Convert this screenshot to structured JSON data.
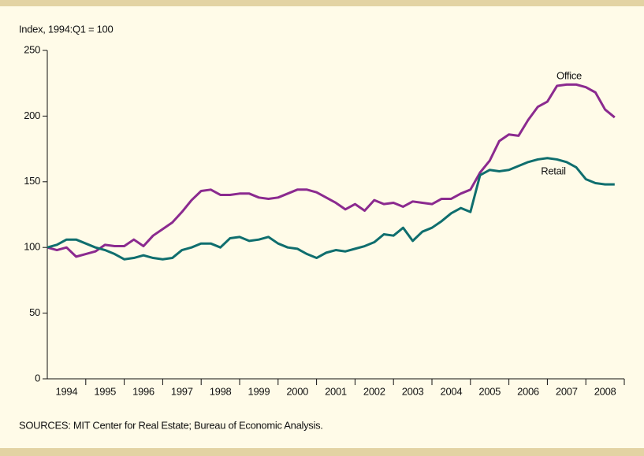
{
  "chart_data": {
    "type": "line",
    "axis_label": "Index, 1994:Q1 = 100",
    "source": "SOURCES: MIT Center for Real Estate; Bureau of Economic Analysis.",
    "categories": [
      "1994",
      "1995",
      "1996",
      "1997",
      "1998",
      "1999",
      "2000",
      "2001",
      "2002",
      "2003",
      "2004",
      "2005",
      "2006",
      "2007",
      "2008"
    ],
    "x": [
      1994,
      1994.25,
      1994.5,
      1994.75,
      1995,
      1995.25,
      1995.5,
      1995.75,
      1996,
      1996.25,
      1996.5,
      1996.75,
      1997,
      1997.25,
      1997.5,
      1997.75,
      1998,
      1998.25,
      1998.5,
      1998.75,
      1999,
      1999.25,
      1999.5,
      1999.75,
      2000,
      2000.25,
      2000.5,
      2000.75,
      2001,
      2001.25,
      2001.5,
      2001.75,
      2002,
      2002.25,
      2002.5,
      2002.75,
      2003,
      2003.25,
      2003.5,
      2003.75,
      2004,
      2004.25,
      2004.5,
      2004.75,
      2005,
      2005.25,
      2005.5,
      2005.75,
      2006,
      2006.25,
      2006.5,
      2006.75,
      2007,
      2007.25,
      2007.5,
      2007.75,
      2008,
      2008.25,
      2008.5,
      2008.75
    ],
    "xlim": [
      1994,
      2009
    ],
    "xticks": [
      1995,
      1996,
      1997,
      1998,
      1999,
      2000,
      2001,
      2002,
      2003,
      2004,
      2005,
      2006,
      2007,
      2008,
      2009
    ],
    "ylim": [
      0,
      250
    ],
    "yticks": [
      0,
      50,
      100,
      150,
      200,
      250
    ],
    "series": [
      {
        "name": "Office",
        "color": "#8b2a8f",
        "values": [
          100,
          98,
          100,
          93,
          95,
          97,
          102,
          101,
          101,
          106,
          101,
          109,
          114,
          119,
          127,
          136,
          143,
          144,
          140,
          140,
          141,
          141,
          138,
          137,
          138,
          141,
          144,
          144,
          142,
          138,
          134,
          129,
          133,
          128,
          136,
          133,
          134,
          131,
          135,
          134,
          133,
          137,
          137,
          141,
          144,
          157,
          166,
          181,
          186,
          185,
          197,
          207,
          211,
          223,
          224,
          224,
          222,
          218,
          205,
          199
        ]
      },
      {
        "name": "Retail",
        "color": "#0f6e6e",
        "values": [
          100,
          102,
          106,
          106,
          103,
          100,
          98,
          95,
          91,
          92,
          94,
          92,
          91,
          92,
          98,
          100,
          103,
          103,
          100,
          107,
          108,
          105,
          106,
          108,
          103,
          100,
          99,
          95,
          92,
          96,
          98,
          97,
          99,
          101,
          104,
          110,
          109,
          115,
          105,
          112,
          115,
          120,
          126,
          130,
          127,
          155,
          159,
          158,
          159,
          162,
          165,
          167,
          168,
          167,
          165,
          161,
          152,
          149,
          148,
          148
        ]
      }
    ]
  }
}
